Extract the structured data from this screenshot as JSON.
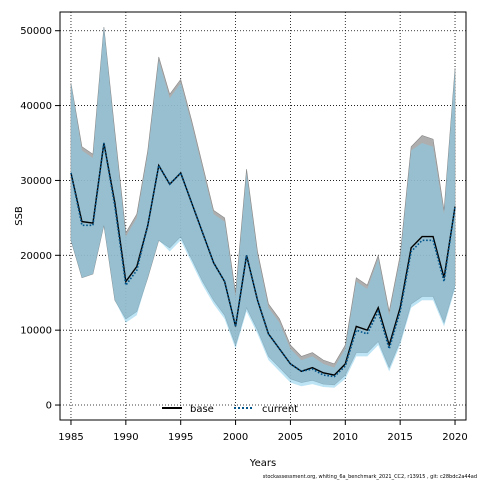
{
  "chart_data": {
    "type": "line",
    "title": "",
    "xlabel": "Years",
    "ylabel": "SSB",
    "xlim": [
      1984,
      2021
    ],
    "ylim": [
      -2000,
      52500
    ],
    "xticks": [
      1985,
      1990,
      1995,
      2000,
      2005,
      2010,
      2015,
      2020
    ],
    "yticks": [
      0,
      10000,
      20000,
      30000,
      40000,
      50000
    ],
    "grid": true,
    "legend_position": "bottom-center",
    "x": [
      1985,
      1986,
      1987,
      1988,
      1989,
      1990,
      1991,
      1992,
      1993,
      1994,
      1995,
      1996,
      1997,
      1998,
      1999,
      2000,
      2001,
      2002,
      2003,
      2004,
      2005,
      2006,
      2007,
      2008,
      2009,
      2010,
      2011,
      2012,
      2013,
      2014,
      2015,
      2016,
      2017,
      2018,
      2019,
      2020
    ],
    "series": [
      {
        "name": "base",
        "style": "solid",
        "color": "#000000",
        "band_color": "#a0a0a0",
        "values": [
          31000,
          24500,
          24300,
          35000,
          27000,
          16500,
          18500,
          24000,
          32000,
          29500,
          31000,
          27000,
          23000,
          19000,
          16500,
          10500,
          20000,
          14000,
          9500,
          7500,
          5500,
          4500,
          5000,
          4300,
          4000,
          5500,
          10500,
          10000,
          13000,
          8000,
          13000,
          21000,
          22500,
          22500,
          17000,
          26500
        ],
        "lower": [
          22000,
          17000,
          17500,
          24000,
          14000,
          11500,
          12500,
          17000,
          22000,
          21000,
          22500,
          19500,
          16500,
          14000,
          12000,
          8000,
          13000,
          10000,
          6500,
          5000,
          3500,
          3000,
          3300,
          2800,
          2700,
          4000,
          7000,
          7000,
          8500,
          5000,
          8500,
          13500,
          14500,
          14500,
          11000,
          16000
        ],
        "upper": [
          43000,
          34500,
          33500,
          50500,
          36500,
          23000,
          25500,
          34000,
          46500,
          41500,
          43500,
          38000,
          32000,
          26000,
          25000,
          15000,
          31500,
          20500,
          13500,
          11500,
          8000,
          6500,
          7000,
          6000,
          5500,
          8000,
          17000,
          16000,
          20000,
          12500,
          20000,
          34500,
          36000,
          35500,
          26000,
          45000
        ]
      },
      {
        "name": "current",
        "style": "dotted",
        "color": "#00548c",
        "band_color": "#87ceeb",
        "values": [
          31000,
          24000,
          24000,
          35000,
          26500,
          16000,
          18000,
          24000,
          32000,
          29500,
          31000,
          27000,
          23000,
          19000,
          16500,
          10500,
          20000,
          14000,
          9500,
          7500,
          5500,
          4500,
          4800,
          4000,
          3800,
          5200,
          10000,
          9500,
          12500,
          7500,
          12500,
          20500,
          22000,
          22000,
          16500,
          26500
        ],
        "lower": [
          22000,
          17000,
          17500,
          24000,
          14000,
          11000,
          12000,
          17000,
          22000,
          20500,
          22000,
          19000,
          16000,
          13500,
          11500,
          7500,
          12500,
          9500,
          6000,
          4500,
          3000,
          2500,
          2800,
          2400,
          2300,
          3500,
          6500,
          6500,
          8000,
          4500,
          8000,
          13000,
          14000,
          14000,
          10500,
          15500
        ],
        "upper": [
          43000,
          34000,
          33000,
          50500,
          36000,
          22500,
          25000,
          33500,
          46000,
          41000,
          43000,
          37500,
          31500,
          25500,
          24500,
          14500,
          31000,
          20000,
          13000,
          11000,
          7500,
          6000,
          6500,
          5500,
          5000,
          7500,
          16500,
          15500,
          19500,
          12000,
          19500,
          34000,
          35000,
          34500,
          25500,
          45000
        ]
      }
    ],
    "footnote": "stockassessment.org, whiting_6a_benchmark_2021_CC2, r13915 , git: c28bdc2a44ad"
  }
}
